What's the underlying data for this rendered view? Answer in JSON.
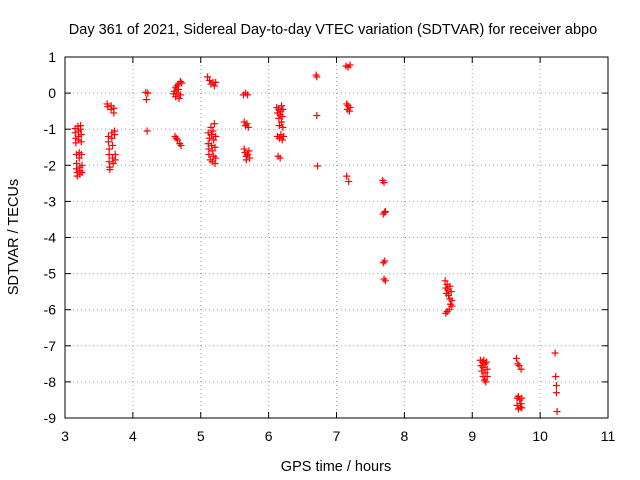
{
  "chart_data": {
    "type": "scatter",
    "title": "Day 361 of 2021, Sidereal Day-to-day VTEC variation (SDTVAR) for receiver abpo",
    "xlabel": "GPS time / hours",
    "ylabel": "SDTVAR / TECUs",
    "xlim": [
      3,
      11
    ],
    "ylim": [
      -9,
      1
    ],
    "xticks": [
      3,
      4,
      5,
      6,
      7,
      8,
      9,
      10,
      11
    ],
    "yticks": [
      1,
      0,
      -1,
      -2,
      -3,
      -4,
      -5,
      -6,
      -7,
      -8,
      -9
    ],
    "grid": true,
    "marker": "+",
    "series": [
      {
        "name": "SDTVAR",
        "color": "#ff0000",
        "points": [
          [
            3.15,
            -0.98
          ],
          [
            3.15,
            -1.1
          ],
          [
            3.16,
            -1.25
          ],
          [
            3.16,
            -1.38
          ],
          [
            3.17,
            -1.7
          ],
          [
            3.17,
            -1.95
          ],
          [
            3.17,
            -2.1
          ],
          [
            3.18,
            -2.2
          ],
          [
            3.18,
            -2.3
          ],
          [
            3.19,
            -0.92
          ],
          [
            3.2,
            -1.05
          ],
          [
            3.2,
            -1.2
          ],
          [
            3.2,
            -1.3
          ],
          [
            3.21,
            -1.65
          ],
          [
            3.21,
            -1.8
          ],
          [
            3.22,
            -2.05
          ],
          [
            3.22,
            -2.15
          ],
          [
            3.22,
            -2.25
          ],
          [
            3.23,
            -0.9
          ],
          [
            3.23,
            -1.0
          ],
          [
            3.24,
            -1.15
          ],
          [
            3.24,
            -1.35
          ],
          [
            3.24,
            -1.7
          ],
          [
            3.25,
            -2.0
          ],
          [
            3.25,
            -2.2
          ],
          [
            3.62,
            -0.3
          ],
          [
            3.63,
            -0.38
          ],
          [
            3.64,
            -1.2
          ],
          [
            3.64,
            -1.35
          ],
          [
            3.65,
            -1.55
          ],
          [
            3.65,
            -1.7
          ],
          [
            3.65,
            -1.9
          ],
          [
            3.66,
            -2.05
          ],
          [
            3.66,
            -2.12
          ],
          [
            3.68,
            -0.35
          ],
          [
            3.68,
            -0.45
          ],
          [
            3.69,
            -1.1
          ],
          [
            3.69,
            -1.25
          ],
          [
            3.7,
            -1.45
          ],
          [
            3.7,
            -1.8
          ],
          [
            3.71,
            -1.95
          ],
          [
            3.72,
            -0.42
          ],
          [
            3.72,
            -0.55
          ],
          [
            3.73,
            -1.05
          ],
          [
            3.73,
            -1.15
          ],
          [
            3.74,
            -1.7
          ],
          [
            3.74,
            -1.85
          ],
          [
            4.19,
            0.02
          ],
          [
            4.2,
            -0.18
          ],
          [
            4.21,
            -1.05
          ],
          [
            4.22,
            0.0
          ],
          [
            4.6,
            -0.02
          ],
          [
            4.61,
            0.05
          ],
          [
            4.62,
            -1.2
          ],
          [
            4.63,
            0.15
          ],
          [
            4.63,
            -0.1
          ],
          [
            4.64,
            -1.25
          ],
          [
            4.65,
            0.2
          ],
          [
            4.65,
            0.0
          ],
          [
            4.66,
            -1.3
          ],
          [
            4.67,
            0.25
          ],
          [
            4.67,
            0.1
          ],
          [
            4.68,
            -0.15
          ],
          [
            4.69,
            -1.4
          ],
          [
            4.7,
            0.32
          ],
          [
            4.7,
            -0.05
          ],
          [
            4.71,
            -1.45
          ],
          [
            4.72,
            0.28
          ],
          [
            5.1,
            0.45
          ],
          [
            5.11,
            -1.1
          ],
          [
            5.11,
            -1.4
          ],
          [
            5.12,
            -1.55
          ],
          [
            5.12,
            -1.7
          ],
          [
            5.13,
            0.35
          ],
          [
            5.13,
            -1.25
          ],
          [
            5.14,
            -1.85
          ],
          [
            5.15,
            0.25
          ],
          [
            5.15,
            -0.95
          ],
          [
            5.16,
            -1.15
          ],
          [
            5.16,
            -1.45
          ],
          [
            5.17,
            -1.6
          ],
          [
            5.17,
            -1.9
          ],
          [
            5.18,
            0.3
          ],
          [
            5.18,
            -1.05
          ],
          [
            5.19,
            -1.3
          ],
          [
            5.19,
            -1.75
          ],
          [
            5.2,
            0.2
          ],
          [
            5.2,
            -0.85
          ],
          [
            5.21,
            -1.5
          ],
          [
            5.21,
            -1.95
          ],
          [
            5.22,
            0.3
          ],
          [
            5.22,
            -1.2
          ],
          [
            5.22,
            -1.8
          ],
          [
            5.63,
            -0.05
          ],
          [
            5.64,
            -0.8
          ],
          [
            5.64,
            -1.55
          ],
          [
            5.65,
            -1.65
          ],
          [
            5.66,
            0.0
          ],
          [
            5.66,
            -0.9
          ],
          [
            5.67,
            -1.75
          ],
          [
            5.67,
            -1.85
          ],
          [
            5.68,
            -0.85
          ],
          [
            5.69,
            -0.05
          ],
          [
            5.69,
            -1.7
          ],
          [
            5.7,
            -0.95
          ],
          [
            5.71,
            -1.6
          ],
          [
            5.72,
            -1.8
          ],
          [
            6.12,
            -0.4
          ],
          [
            6.13,
            -0.55
          ],
          [
            6.13,
            -1.2
          ],
          [
            6.14,
            -1.75
          ],
          [
            6.15,
            -0.45
          ],
          [
            6.15,
            -0.7
          ],
          [
            6.16,
            -0.9
          ],
          [
            6.16,
            -1.25
          ],
          [
            6.17,
            -1.8
          ],
          [
            6.17,
            -0.6
          ],
          [
            6.18,
            -0.5
          ],
          [
            6.18,
            -1.15
          ],
          [
            6.19,
            -0.8
          ],
          [
            6.19,
            -0.35
          ],
          [
            6.2,
            -0.65
          ],
          [
            6.2,
            -1.3
          ],
          [
            6.21,
            -0.95
          ],
          [
            6.21,
            -0.45
          ],
          [
            6.22,
            -1.2
          ],
          [
            6.7,
            0.5
          ],
          [
            6.71,
            0.45
          ],
          [
            6.71,
            -0.62
          ],
          [
            6.72,
            -2.02
          ],
          [
            7.14,
            0.75
          ],
          [
            7.15,
            -0.3
          ],
          [
            7.15,
            -2.3
          ],
          [
            7.16,
            -0.45
          ],
          [
            7.17,
            0.72
          ],
          [
            7.17,
            -0.35
          ],
          [
            7.18,
            -2.45
          ],
          [
            7.19,
            -0.5
          ],
          [
            7.2,
            0.78
          ],
          [
            7.2,
            -0.4
          ],
          [
            7.68,
            -2.42
          ],
          [
            7.69,
            -3.35
          ],
          [
            7.69,
            -4.7
          ],
          [
            7.7,
            -5.15
          ],
          [
            7.7,
            -2.48
          ],
          [
            7.71,
            -3.3
          ],
          [
            7.71,
            -4.65
          ],
          [
            7.72,
            -5.2
          ],
          [
            7.72,
            -3.28
          ],
          [
            8.6,
            -5.2
          ],
          [
            8.61,
            -5.4
          ],
          [
            8.61,
            -6.1
          ],
          [
            8.62,
            -5.55
          ],
          [
            8.63,
            -5.3
          ],
          [
            8.63,
            -6.05
          ],
          [
            8.64,
            -5.45
          ],
          [
            8.65,
            -5.6
          ],
          [
            8.66,
            -6.0
          ],
          [
            8.67,
            -5.35
          ],
          [
            8.67,
            -5.7
          ],
          [
            8.68,
            -5.85
          ],
          [
            8.69,
            -5.5
          ],
          [
            8.7,
            -5.9
          ],
          [
            8.7,
            -5.75
          ],
          [
            9.12,
            -7.4
          ],
          [
            9.13,
            -7.55
          ],
          [
            9.14,
            -7.7
          ],
          [
            9.15,
            -7.45
          ],
          [
            9.16,
            -7.85
          ],
          [
            9.16,
            -7.6
          ],
          [
            9.17,
            -7.4
          ],
          [
            9.18,
            -7.95
          ],
          [
            9.19,
            -7.5
          ],
          [
            9.19,
            -7.75
          ],
          [
            9.2,
            -8.0
          ],
          [
            9.21,
            -7.45
          ],
          [
            9.22,
            -7.65
          ],
          [
            9.22,
            -7.85
          ],
          [
            9.65,
            -7.35
          ],
          [
            9.66,
            -8.45
          ],
          [
            9.66,
            -8.65
          ],
          [
            9.67,
            -7.5
          ],
          [
            9.68,
            -8.4
          ],
          [
            9.68,
            -8.75
          ],
          [
            9.69,
            -7.55
          ],
          [
            9.7,
            -8.5
          ],
          [
            9.71,
            -8.7
          ],
          [
            9.72,
            -7.65
          ],
          [
            9.72,
            -8.6
          ],
          [
            9.73,
            -8.45
          ],
          [
            9.73,
            -8.72
          ],
          [
            10.22,
            -7.2
          ],
          [
            10.23,
            -7.85
          ],
          [
            10.24,
            -8.1
          ],
          [
            10.24,
            -8.3
          ],
          [
            10.25,
            -8.82
          ]
        ]
      }
    ]
  }
}
